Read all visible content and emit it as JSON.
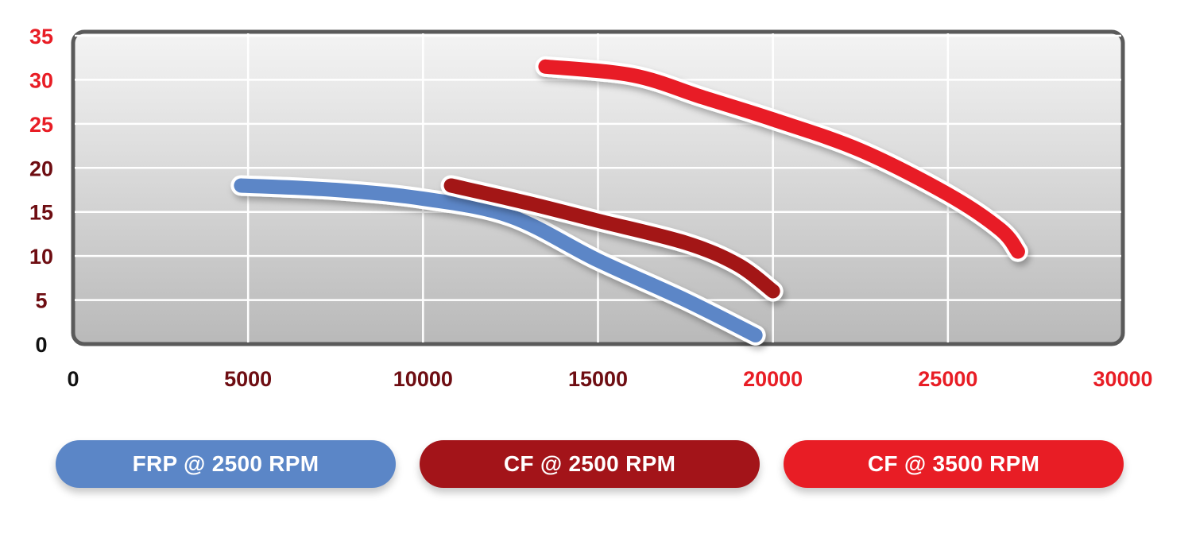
{
  "chart_data": {
    "type": "line",
    "title": "",
    "xlabel": "",
    "ylabel": "",
    "xlim": [
      0,
      30000
    ],
    "ylim": [
      0,
      35
    ],
    "x_ticks": [
      "0",
      "5000",
      "10000",
      "15000",
      "20000",
      "25000",
      "30000"
    ],
    "y_ticks": [
      "0",
      "5",
      "10",
      "15",
      "20",
      "25",
      "30",
      "35"
    ],
    "grid": true,
    "legend_position": "bottom",
    "series": [
      {
        "name": "FRP @ 2500 RPM",
        "color": "#5b86c7",
        "points": [
          [
            4800,
            18
          ],
          [
            7500,
            17.5
          ],
          [
            10000,
            16.5
          ],
          [
            12500,
            14.5
          ],
          [
            15000,
            9.5
          ],
          [
            17500,
            5
          ],
          [
            19500,
            1
          ]
        ]
      },
      {
        "name": "CF @ 2500 RPM",
        "color": "#a31419",
        "points": [
          [
            10800,
            18
          ],
          [
            13000,
            16
          ],
          [
            15000,
            14
          ],
          [
            17500,
            11.5
          ],
          [
            19000,
            9
          ],
          [
            20000,
            6
          ]
        ]
      },
      {
        "name": "CF @ 3500 RPM",
        "color": "#e81d25",
        "points": [
          [
            13500,
            31.5
          ],
          [
            16000,
            30.5
          ],
          [
            18000,
            28
          ],
          [
            20000,
            25.5
          ],
          [
            22500,
            22
          ],
          [
            25000,
            17
          ],
          [
            26500,
            13
          ],
          [
            27000,
            10.5
          ]
        ]
      }
    ]
  },
  "colors": {
    "tick_dark": "#111111",
    "tick_maroon": "#6e0d12",
    "tick_red": "#e81d25",
    "plot_border": "#5a5a5a",
    "grid": "#ffffff"
  }
}
